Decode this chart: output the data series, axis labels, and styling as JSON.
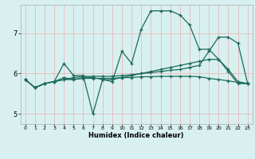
{
  "xlabel": "Humidex (Indice chaleur)",
  "ylabel": "",
  "bg_color": "#d8f0f0",
  "grid_color": "#e8b8b8",
  "line_color": "#1a6b5a",
  "xlim": [
    -0.5,
    23.5
  ],
  "ylim": [
    4.75,
    7.7
  ],
  "yticks": [
    5,
    6,
    7
  ],
  "xticks": [
    0,
    1,
    2,
    3,
    4,
    5,
    6,
    7,
    8,
    9,
    10,
    11,
    12,
    13,
    14,
    15,
    16,
    17,
    18,
    19,
    20,
    21,
    22,
    23
  ],
  "series": [
    [
      5.85,
      5.65,
      5.75,
      5.8,
      6.25,
      5.95,
      5.95,
      5.0,
      5.85,
      5.8,
      6.55,
      6.25,
      7.1,
      7.55,
      7.55,
      7.55,
      7.45,
      7.2,
      6.6,
      6.6,
      6.35,
      6.05,
      5.75,
      5.75
    ],
    [
      5.85,
      5.65,
      5.75,
      5.8,
      5.9,
      5.85,
      5.9,
      5.9,
      5.85,
      5.85,
      5.9,
      5.95,
      6.0,
      6.05,
      6.1,
      6.15,
      6.2,
      6.25,
      6.3,
      6.35,
      6.35,
      6.1,
      5.8,
      5.75
    ],
    [
      5.85,
      5.65,
      5.75,
      5.8,
      5.85,
      5.85,
      5.88,
      5.88,
      5.88,
      5.88,
      5.9,
      5.9,
      5.92,
      5.92,
      5.93,
      5.93,
      5.93,
      5.93,
      5.92,
      5.88,
      5.85,
      5.82,
      5.78,
      5.75
    ],
    [
      5.85,
      5.65,
      5.75,
      5.8,
      5.85,
      5.9,
      5.93,
      5.93,
      5.93,
      5.93,
      5.95,
      5.97,
      6.0,
      6.02,
      6.05,
      6.08,
      6.1,
      6.15,
      6.2,
      6.55,
      6.9,
      6.9,
      6.75,
      5.75
    ]
  ]
}
